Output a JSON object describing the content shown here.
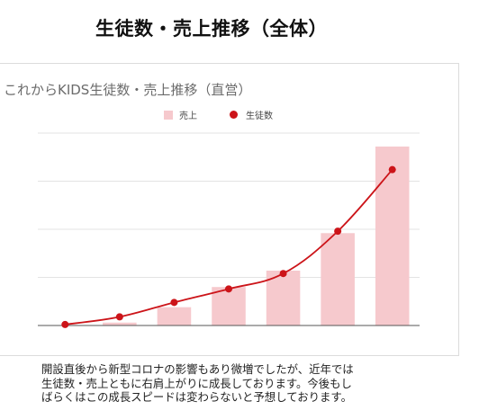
{
  "page": {
    "title": "生徒数・売上推移（全体）",
    "caption_lines": [
      "開設直後から新型コロナの影響もあり微増でしたが、近年では",
      "生徒数・売上ともに右肩上がりに成長しております。今後もし",
      "ばらくはこの成長スピードは変わらないと予想しております。"
    ]
  },
  "chart_data": {
    "type": "bar",
    "title": "これからKIDS生徒数・売上推移（直営）",
    "categories": [
      "",
      "",
      "",
      "",
      "",
      "",
      ""
    ],
    "ylim": [
      0,
      100
    ],
    "grid": true,
    "legend_position": "top",
    "series": [
      {
        "name": "売上",
        "type": "bar",
        "color": "#f6c9cd",
        "values": [
          0,
          1.5,
          9.5,
          20,
          28.5,
          48,
          93
        ]
      },
      {
        "name": "生徒数",
        "type": "line",
        "color": "#cc1419",
        "values": [
          0.5,
          4.5,
          12,
          19,
          27,
          49,
          81
        ]
      }
    ]
  }
}
